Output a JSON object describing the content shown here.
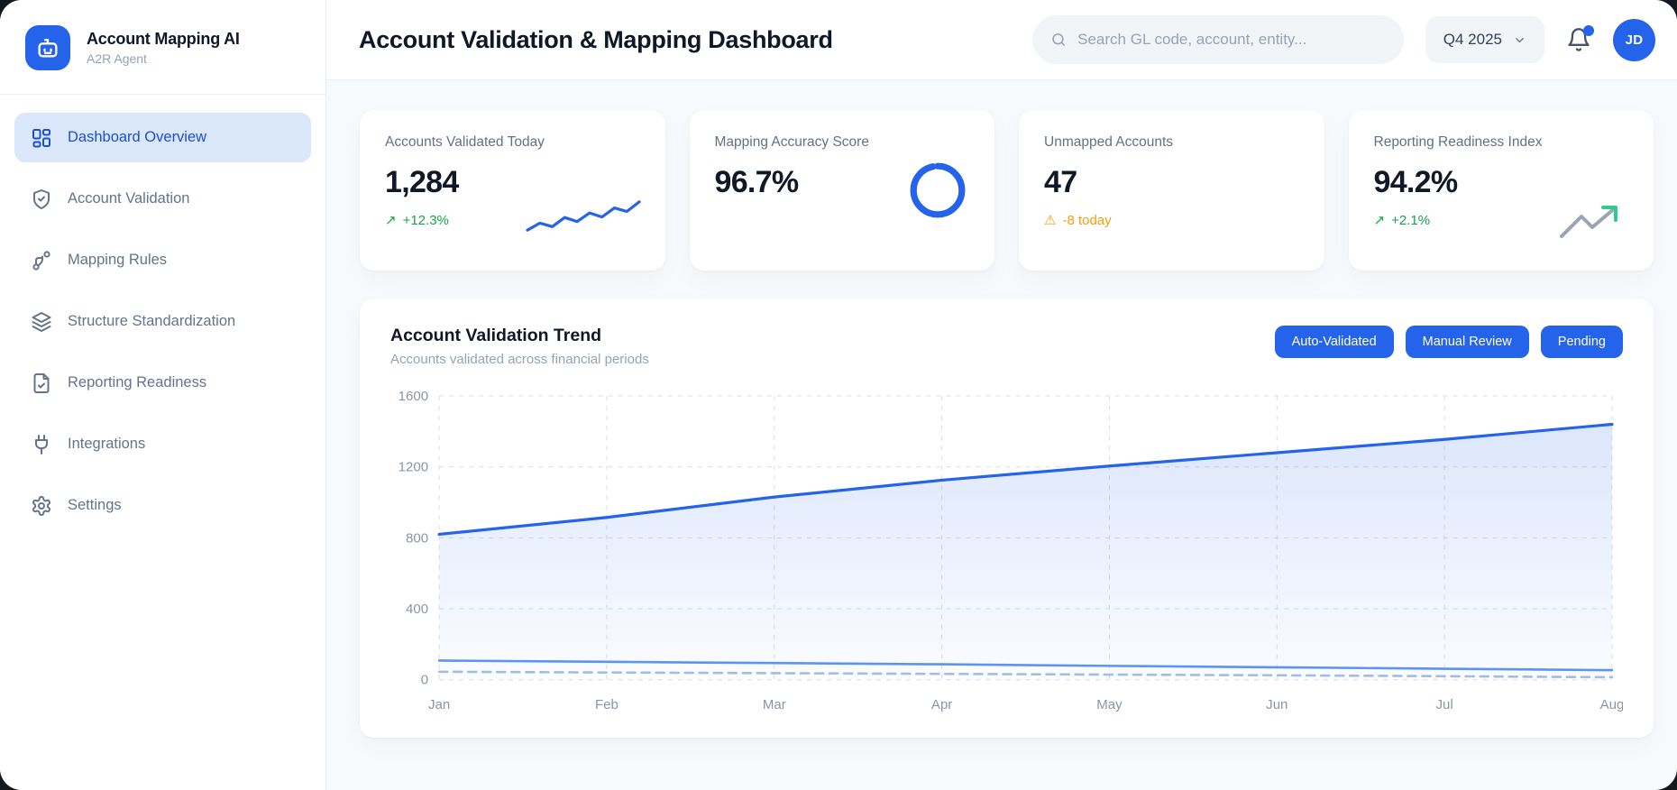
{
  "brand": {
    "title": "Account Mapping AI",
    "subtitle": "A2R Agent"
  },
  "sidebar": {
    "items": [
      {
        "label": "Dashboard Overview",
        "icon": "layout-dashboard-icon",
        "active": true
      },
      {
        "label": "Account Validation",
        "icon": "shield-check-icon",
        "active": false
      },
      {
        "label": "Mapping Rules",
        "icon": "route-icon",
        "active": false
      },
      {
        "label": "Structure Standardization",
        "icon": "layers-icon",
        "active": false
      },
      {
        "label": "Reporting Readiness",
        "icon": "file-check-icon",
        "active": false
      },
      {
        "label": "Integrations",
        "icon": "plug-icon",
        "active": false
      },
      {
        "label": "Settings",
        "icon": "gear-icon",
        "active": false
      }
    ]
  },
  "header": {
    "title": "Account Validation & Mapping Dashboard",
    "search_placeholder": "Search GL code, account, entity...",
    "period_selector": "Q4 2025",
    "avatar_initials": "JD",
    "notification_dot_color": "#2563eb"
  },
  "stats": [
    {
      "label": "Accounts Validated Today",
      "value": "1,284",
      "delta": "+12.3%",
      "delta_icon": "↗",
      "delta_color": "#16a34a",
      "sparkline": [
        30,
        44,
        37,
        55,
        47,
        64,
        56,
        74,
        67,
        86
      ]
    },
    {
      "label": "Mapping Accuracy Score",
      "value": "96.7%",
      "donut_percent": 96.7,
      "donut_color": "#2563eb"
    },
    {
      "label": "Unmapped Accounts",
      "value": "47",
      "delta": "-8 today",
      "delta_icon": "⚠",
      "delta_color": "#f59e0b"
    },
    {
      "label": "Reporting Readiness Index",
      "value": "94.2%",
      "delta": "+2.1%",
      "delta_icon": "↗",
      "delta_color": "#16a34a"
    }
  ],
  "chart_card": {
    "title": "Account Validation Trend",
    "subtitle": "Accounts validated across financial periods",
    "buttons": [
      {
        "label": "Auto-Validated"
      },
      {
        "label": "Manual Review"
      },
      {
        "label": "Pending"
      }
    ],
    "button_color": "#2563eb"
  },
  "chart_data": {
    "type": "area",
    "title": "Account Validation Trend",
    "x": [
      "Jan",
      "Feb",
      "Mar",
      "Apr",
      "May",
      "Jun",
      "Jul",
      "Aug"
    ],
    "series": [
      {
        "name": "Auto-Validated",
        "values": [
          820,
          915,
          1030,
          1125,
          1205,
          1280,
          1355,
          1440
        ],
        "color": "#2563eb",
        "style": "solid-area"
      },
      {
        "name": "Manual Review",
        "values": [
          108,
          101,
          94,
          87,
          78,
          70,
          62,
          54
        ],
        "color": "#5a95f5",
        "style": "solid"
      },
      {
        "name": "Pending",
        "values": [
          45,
          41,
          37,
          33,
          29,
          25,
          20,
          14
        ],
        "color": "#a3bce0",
        "style": "dashed"
      }
    ],
    "xlabel": "",
    "ylabel": "",
    "ylim": [
      0,
      1600
    ],
    "yticks": [
      0,
      400,
      800,
      1200,
      1600
    ],
    "grid": "dashed",
    "legend_position": "top-right"
  }
}
